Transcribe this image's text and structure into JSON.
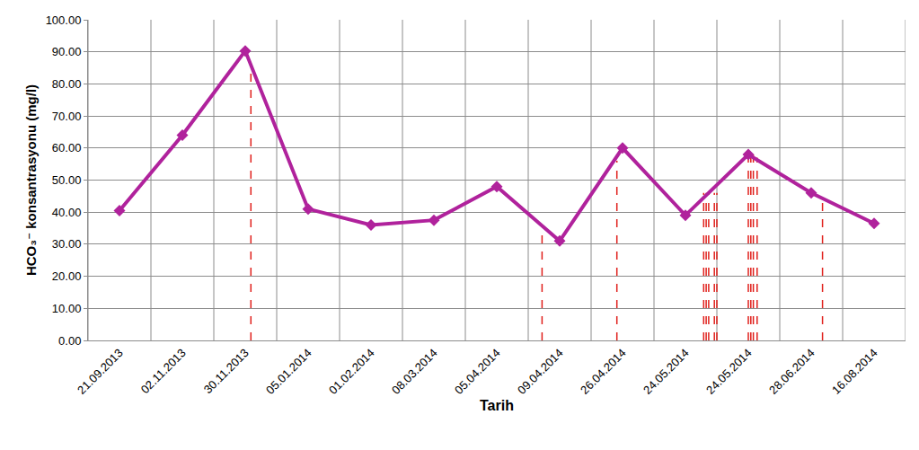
{
  "chart_data": {
    "type": "line",
    "x_label": "Tarih",
    "y_label": "HCO₃⁻ konsantrasyonu (mg/l)",
    "categories": [
      "21.09.2013",
      "02.11.2013",
      "30.11.2013",
      "05.01.2014",
      "01.02.2014",
      "08.03.2014",
      "05.04.2014",
      "09.04.2014",
      "26.04.2014",
      "24.05.2014",
      "24.05.2014",
      "28.06.2014",
      "16.08.2014"
    ],
    "values": [
      40.5,
      64,
      90.3,
      41,
      36,
      37.5,
      48,
      31,
      60,
      39,
      58,
      46,
      36.5
    ],
    "color": "#b0229c",
    "marker": "diamond",
    "ylim": [
      0,
      100
    ],
    "yticks": [
      {
        "value": 0,
        "label": "0.00"
      },
      {
        "value": 10,
        "label": "10.00"
      },
      {
        "value": 20,
        "label": "20.00"
      },
      {
        "value": 30,
        "label": "30.00"
      },
      {
        "value": 40,
        "label": "40.00"
      },
      {
        "value": 50,
        "label": "50.00"
      },
      {
        "value": 60,
        "label": "60.00"
      },
      {
        "value": 70,
        "label": "70.00"
      },
      {
        "value": 80,
        "label": "80.00"
      },
      {
        "value": 90,
        "label": "90.00"
      },
      {
        "value": 100,
        "label": "100.00"
      }
    ],
    "grid": true,
    "vertical_lines": {
      "color": "#e0201c",
      "line_style": "dash",
      "x": [
        2.09,
        6.72,
        7.91,
        9.29,
        9.33,
        9.37,
        9.46,
        9.5,
        10.0,
        10.04,
        10.08,
        10.14,
        11.18
      ],
      "y": [
        85,
        35.5,
        56,
        46,
        46,
        46,
        46,
        46,
        57,
        58,
        58,
        57,
        44
      ]
    }
  }
}
